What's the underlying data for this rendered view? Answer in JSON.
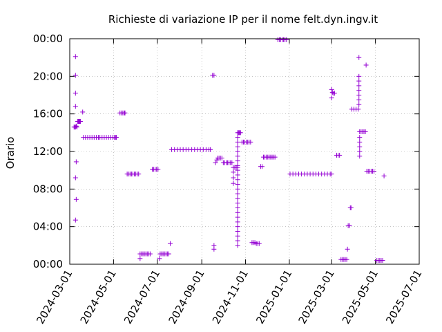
{
  "chart_data": {
    "type": "scatter",
    "title": "Richieste di variazione IP per il nome felt.dyn.ingv.it",
    "xlabel": "",
    "ylabel": "Orario",
    "x_ticks": [
      "2024-03-01",
      "2024-05-01",
      "2024-07-01",
      "2024-09-01",
      "2024-11-01",
      "2025-01-01",
      "2025-03-01",
      "2025-05-01",
      "2025-07-01"
    ],
    "y_ticks": [
      "00:00",
      "04:00",
      "08:00",
      "12:00",
      "16:00",
      "20:00",
      "00:00"
    ],
    "xlim": [
      "2024-03-01",
      "2025-07-01"
    ],
    "ylim_hours": [
      0,
      24
    ],
    "grid": true,
    "marker": "+",
    "color": "#9400d3",
    "series": [
      {
        "points": [
          [
            "2024-03-07",
            14.6
          ],
          [
            "2024-03-08",
            14.6
          ],
          [
            "2024-03-09",
            14.6
          ],
          [
            "2024-03-10",
            14.7
          ],
          [
            "2024-03-11",
            14.6
          ],
          [
            "2024-03-09",
            22.1
          ],
          [
            "2024-03-09",
            20.1
          ],
          [
            "2024-03-09",
            18.2
          ],
          [
            "2024-03-09",
            16.8
          ],
          [
            "2024-03-10",
            10.9
          ],
          [
            "2024-03-09",
            9.2
          ],
          [
            "2024-03-10",
            6.9
          ],
          [
            "2024-03-09",
            4.7
          ],
          [
            "2024-03-12",
            15.2
          ],
          [
            "2024-03-13",
            15.2
          ],
          [
            "2024-03-14",
            15.2
          ],
          [
            "2024-03-15",
            15.2
          ],
          [
            "2024-03-16",
            15.2
          ],
          [
            "2024-03-19",
            16.2
          ],
          [
            "2024-03-20",
            13.5
          ],
          [
            "2024-03-23",
            13.5
          ],
          [
            "2024-03-26",
            13.5
          ],
          [
            "2024-03-29",
            13.5
          ],
          [
            "2024-04-01",
            13.5
          ],
          [
            "2024-04-04",
            13.5
          ],
          [
            "2024-04-07",
            13.5
          ],
          [
            "2024-04-10",
            13.5
          ],
          [
            "2024-04-12",
            13.5
          ],
          [
            "2024-04-15",
            13.5
          ],
          [
            "2024-04-18",
            13.5
          ],
          [
            "2024-04-21",
            13.5
          ],
          [
            "2024-04-24",
            13.5
          ],
          [
            "2024-04-27",
            13.5
          ],
          [
            "2024-04-30",
            13.5
          ],
          [
            "2024-05-02",
            13.5
          ],
          [
            "2024-05-04",
            13.5
          ],
          [
            "2024-05-05",
            13.5
          ],
          [
            "2024-05-10",
            16.1
          ],
          [
            "2024-05-12",
            16.1
          ],
          [
            "2024-05-14",
            16.1
          ],
          [
            "2024-05-16",
            16.1
          ],
          [
            "2024-05-17",
            16.1
          ],
          [
            "2024-05-20",
            9.6
          ],
          [
            "2024-05-22",
            9.6
          ],
          [
            "2024-05-24",
            9.6
          ],
          [
            "2024-05-26",
            9.6
          ],
          [
            "2024-05-28",
            9.6
          ],
          [
            "2024-05-30",
            9.6
          ],
          [
            "2024-06-01",
            9.6
          ],
          [
            "2024-06-03",
            9.6
          ],
          [
            "2024-06-05",
            9.6
          ],
          [
            "2024-06-07",
            1.1
          ],
          [
            "2024-06-09",
            1.1
          ],
          [
            "2024-06-11",
            1.1
          ],
          [
            "2024-06-13",
            1.1
          ],
          [
            "2024-06-15",
            1.1
          ],
          [
            "2024-06-17",
            1.1
          ],
          [
            "2024-06-19",
            1.1
          ],
          [
            "2024-06-21",
            1.1
          ],
          [
            "2024-06-07",
            0.6
          ],
          [
            "2024-06-24",
            10.1
          ],
          [
            "2024-06-26",
            10.1
          ],
          [
            "2024-06-28",
            10.1
          ],
          [
            "2024-06-30",
            10.1
          ],
          [
            "2024-07-02",
            10.1
          ],
          [
            "2024-07-04",
            0.6
          ],
          [
            "2024-07-05",
            1.1
          ],
          [
            "2024-07-07",
            1.1
          ],
          [
            "2024-07-09",
            1.1
          ],
          [
            "2024-07-11",
            1.1
          ],
          [
            "2024-07-13",
            1.1
          ],
          [
            "2024-07-15",
            1.1
          ],
          [
            "2024-07-17",
            1.1
          ],
          [
            "2024-07-19",
            2.2
          ],
          [
            "2024-07-21",
            12.2
          ],
          [
            "2024-07-25",
            12.2
          ],
          [
            "2024-07-29",
            12.2
          ],
          [
            "2024-08-02",
            12.2
          ],
          [
            "2024-08-06",
            12.2
          ],
          [
            "2024-08-10",
            12.2
          ],
          [
            "2024-08-14",
            12.2
          ],
          [
            "2024-08-18",
            12.2
          ],
          [
            "2024-08-22",
            12.2
          ],
          [
            "2024-08-26",
            12.2
          ],
          [
            "2024-08-30",
            12.2
          ],
          [
            "2024-09-03",
            12.2
          ],
          [
            "2024-09-07",
            12.2
          ],
          [
            "2024-09-11",
            12.2
          ],
          [
            "2024-09-13",
            12.2
          ],
          [
            "2024-09-16",
            20.1
          ],
          [
            "2024-09-18",
            20.1
          ],
          [
            "2024-09-18",
            2.0
          ],
          [
            "2024-09-18",
            1.6
          ],
          [
            "2024-09-20",
            10.8
          ],
          [
            "2024-09-22",
            11.1
          ],
          [
            "2024-09-23",
            11.3
          ],
          [
            "2024-09-25",
            11.3
          ],
          [
            "2024-09-27",
            11.3
          ],
          [
            "2024-09-29",
            11.3
          ],
          [
            "2024-10-01",
            10.8
          ],
          [
            "2024-10-03",
            10.8
          ],
          [
            "2024-10-05",
            10.8
          ],
          [
            "2024-10-07",
            10.8
          ],
          [
            "2024-10-09",
            10.8
          ],
          [
            "2024-10-11",
            10.8
          ],
          [
            "2024-10-13",
            10.8
          ],
          [
            "2024-10-15",
            10.3
          ],
          [
            "2024-10-17",
            10.3
          ],
          [
            "2024-10-19",
            10.3
          ],
          [
            "2024-10-21",
            10.3
          ],
          [
            "2024-10-15",
            9.8
          ],
          [
            "2024-10-15",
            9.2
          ],
          [
            "2024-10-15",
            8.6
          ],
          [
            "2024-10-21",
            14.0
          ],
          [
            "2024-10-22",
            14.0
          ],
          [
            "2024-10-23",
            14.0
          ],
          [
            "2024-10-24",
            14.0
          ],
          [
            "2024-10-25",
            14.0
          ],
          [
            "2024-10-21",
            13.5
          ],
          [
            "2024-10-21",
            13.0
          ],
          [
            "2024-10-21",
            12.5
          ],
          [
            "2024-10-21",
            12.0
          ],
          [
            "2024-10-21",
            11.5
          ],
          [
            "2024-10-21",
            11.0
          ],
          [
            "2024-10-21",
            10.5
          ],
          [
            "2024-10-21",
            10.0
          ],
          [
            "2024-10-21",
            9.5
          ],
          [
            "2024-10-21",
            9.0
          ],
          [
            "2024-10-21",
            8.5
          ],
          [
            "2024-10-21",
            8.0
          ],
          [
            "2024-10-21",
            7.5
          ],
          [
            "2024-10-21",
            7.0
          ],
          [
            "2024-10-21",
            6.5
          ],
          [
            "2024-10-21",
            6.0
          ],
          [
            "2024-10-21",
            5.5
          ],
          [
            "2024-10-21",
            5.0
          ],
          [
            "2024-10-21",
            4.5
          ],
          [
            "2024-10-21",
            4.0
          ],
          [
            "2024-10-21",
            3.5
          ],
          [
            "2024-10-21",
            3.0
          ],
          [
            "2024-10-21",
            2.5
          ],
          [
            "2024-10-21",
            2.0
          ],
          [
            "2024-10-27",
            13.0
          ],
          [
            "2024-10-29",
            13.0
          ],
          [
            "2024-10-31",
            13.0
          ],
          [
            "2024-11-02",
            13.0
          ],
          [
            "2024-11-04",
            13.0
          ],
          [
            "2024-11-06",
            13.0
          ],
          [
            "2024-11-08",
            13.0
          ],
          [
            "2024-11-10",
            2.3
          ],
          [
            "2024-11-12",
            2.3
          ],
          [
            "2024-11-14",
            2.3
          ],
          [
            "2024-11-16",
            2.2
          ],
          [
            "2024-11-18",
            2.2
          ],
          [
            "2024-11-20",
            2.2
          ],
          [
            "2024-11-22",
            10.4
          ],
          [
            "2024-11-24",
            10.4
          ],
          [
            "2024-11-26",
            11.4
          ],
          [
            "2024-11-28",
            11.4
          ],
          [
            "2024-11-30",
            11.4
          ],
          [
            "2024-12-02",
            11.4
          ],
          [
            "2024-12-04",
            11.4
          ],
          [
            "2024-12-06",
            11.4
          ],
          [
            "2024-12-08",
            11.4
          ],
          [
            "2024-12-10",
            11.4
          ],
          [
            "2024-12-12",
            11.4
          ],
          [
            "2024-12-16",
            23.9
          ],
          [
            "2024-12-18",
            23.9
          ],
          [
            "2024-12-20",
            23.9
          ],
          [
            "2024-12-22",
            23.9
          ],
          [
            "2024-12-24",
            23.9
          ],
          [
            "2024-12-26",
            23.9
          ],
          [
            "2024-12-28",
            23.9
          ],
          [
            "2025-01-02",
            9.6
          ],
          [
            "2025-01-06",
            9.6
          ],
          [
            "2025-01-10",
            9.6
          ],
          [
            "2025-01-14",
            9.6
          ],
          [
            "2025-01-18",
            9.6
          ],
          [
            "2025-01-22",
            9.6
          ],
          [
            "2025-01-26",
            9.6
          ],
          [
            "2025-01-30",
            9.6
          ],
          [
            "2025-02-03",
            9.6
          ],
          [
            "2025-02-07",
            9.6
          ],
          [
            "2025-02-11",
            9.6
          ],
          [
            "2025-02-15",
            9.6
          ],
          [
            "2025-02-19",
            9.6
          ],
          [
            "2025-02-23",
            9.6
          ],
          [
            "2025-02-27",
            9.6
          ],
          [
            "2025-03-01",
            9.6
          ],
          [
            "2025-03-01",
            18.6
          ],
          [
            "2025-03-02",
            18.3
          ],
          [
            "2025-03-01",
            17.7
          ],
          [
            "2025-03-03",
            18.2
          ],
          [
            "2025-03-05",
            18.2
          ],
          [
            "2025-03-08",
            11.6
          ],
          [
            "2025-03-10",
            11.6
          ],
          [
            "2025-03-12",
            11.6
          ],
          [
            "2025-03-14",
            0.5
          ],
          [
            "2025-03-16",
            0.5
          ],
          [
            "2025-03-18",
            0.5
          ],
          [
            "2025-03-20",
            0.5
          ],
          [
            "2025-03-22",
            0.5
          ],
          [
            "2025-03-23",
            1.6
          ],
          [
            "2025-03-24",
            4.1
          ],
          [
            "2025-03-26",
            4.1
          ],
          [
            "2025-03-27",
            6.0
          ],
          [
            "2025-03-28",
            6.0
          ],
          [
            "2025-03-29",
            16.5
          ],
          [
            "2025-04-01",
            16.5
          ],
          [
            "2025-04-04",
            16.5
          ],
          [
            "2025-04-07",
            16.5
          ],
          [
            "2025-04-08",
            22.0
          ],
          [
            "2025-04-08",
            20.0
          ],
          [
            "2025-04-08",
            19.5
          ],
          [
            "2025-04-08",
            19.0
          ],
          [
            "2025-04-08",
            18.5
          ],
          [
            "2025-04-08",
            18.0
          ],
          [
            "2025-04-08",
            17.5
          ],
          [
            "2025-04-08",
            17.0
          ],
          [
            "2025-04-09",
            14.1
          ],
          [
            "2025-04-11",
            14.1
          ],
          [
            "2025-04-13",
            14.1
          ],
          [
            "2025-04-15",
            14.1
          ],
          [
            "2025-04-17",
            14.1
          ],
          [
            "2025-04-09",
            13.5
          ],
          [
            "2025-04-09",
            13.0
          ],
          [
            "2025-04-09",
            12.5
          ],
          [
            "2025-04-09",
            12.0
          ],
          [
            "2025-04-09",
            11.5
          ],
          [
            "2025-04-18",
            21.2
          ],
          [
            "2025-04-19",
            9.9
          ],
          [
            "2025-04-21",
            9.9
          ],
          [
            "2025-04-23",
            9.9
          ],
          [
            "2025-04-25",
            9.9
          ],
          [
            "2025-04-27",
            9.9
          ],
          [
            "2025-04-29",
            9.9
          ],
          [
            "2025-05-03",
            0.4
          ],
          [
            "2025-05-05",
            0.4
          ],
          [
            "2025-05-07",
            0.4
          ],
          [
            "2025-05-09",
            0.4
          ],
          [
            "2025-05-11",
            0.4
          ],
          [
            "2025-05-13",
            9.4
          ]
        ]
      }
    ]
  }
}
